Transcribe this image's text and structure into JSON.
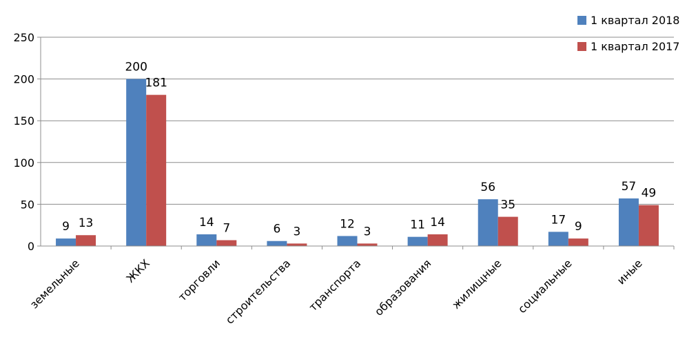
{
  "chart_data": {
    "type": "bar",
    "categories": [
      "земельные",
      "ЖКХ",
      "торговли",
      "строительства",
      "транспорта",
      "образования",
      "жилищные",
      "социальные",
      "иные"
    ],
    "series": [
      {
        "name": "1 квартал 2018",
        "color": "#4F81BD",
        "values": [
          9,
          200,
          14,
          6,
          12,
          11,
          56,
          17,
          57
        ]
      },
      {
        "name": "1 квартал 2017",
        "color": "#C0504D",
        "values": [
          13,
          181,
          7,
          3,
          3,
          14,
          35,
          9,
          49
        ]
      }
    ],
    "ylim": [
      0,
      250
    ],
    "yticks": [
      0,
      50,
      100,
      150,
      200,
      250
    ],
    "grid": true,
    "legend_position": "top-right"
  }
}
